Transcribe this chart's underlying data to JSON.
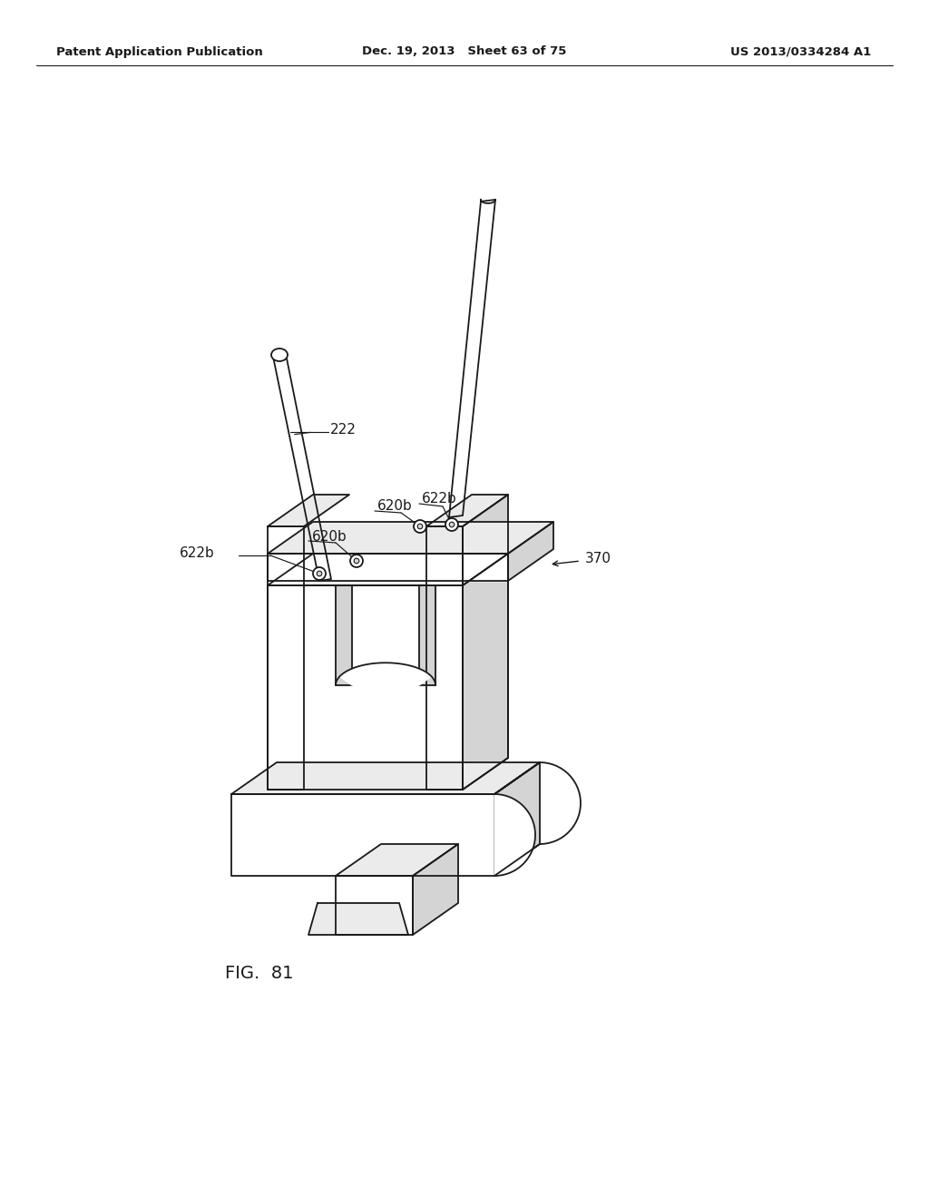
{
  "patent_left": "Patent Application Publication",
  "patent_mid": "Dec. 19, 2013   Sheet 63 of 75",
  "patent_right": "US 2013/0334284 A1",
  "fig_label": "FIG.  81",
  "lc": "#1a1a1a",
  "lw": 1.3,
  "lw_thin": 0.85,
  "gl": "#ebebeb",
  "gm": "#d4d4d4",
  "gd": "#b8b8b8",
  "white": "#ffffff"
}
